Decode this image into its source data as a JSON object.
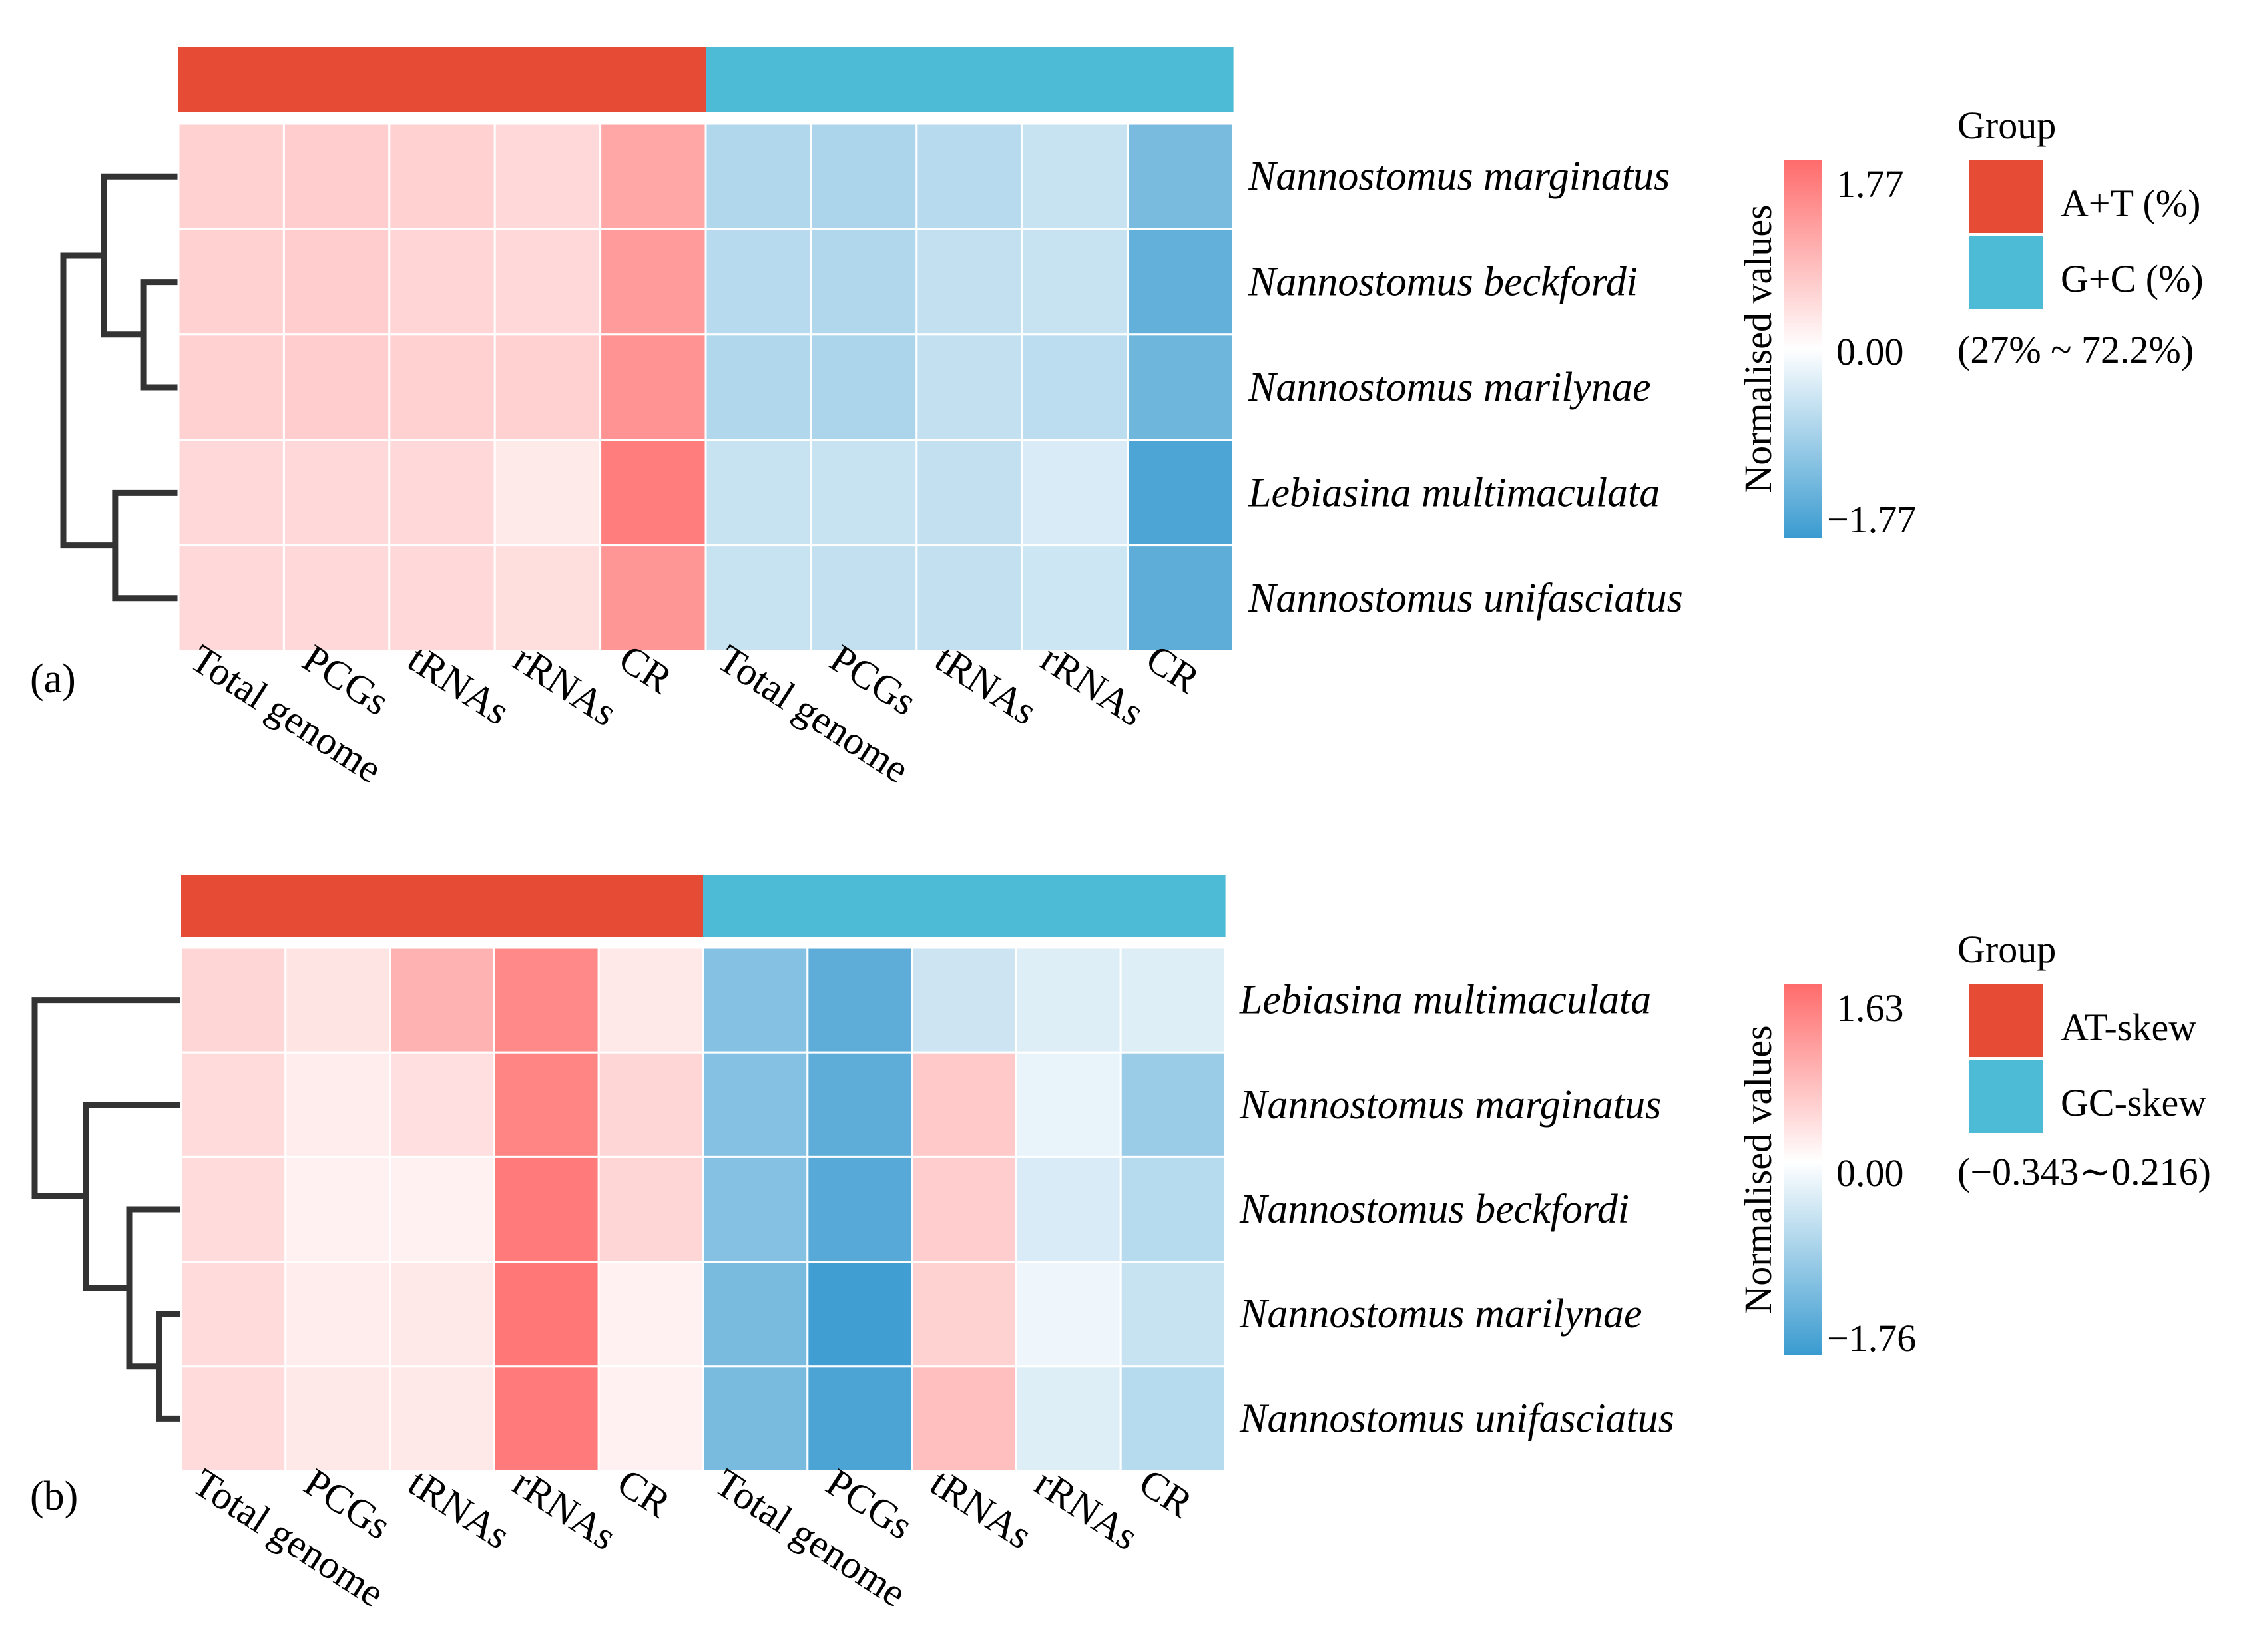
{
  "chart_data": [
    {
      "type": "heatmap",
      "panel_label": "(a)",
      "columns": [
        "Total genome",
        "PCGs",
        "tRNAs",
        "rRNAs",
        "CR",
        "Total genome",
        "PCGs",
        "tRNAs",
        "rRNAs",
        "CR"
      ],
      "column_groups": [
        "A+T (%)",
        "A+T (%)",
        "A+T (%)",
        "A+T (%)",
        "A+T (%)",
        "G+C (%)",
        "G+C (%)",
        "G+C (%)",
        "G+C (%)",
        "G+C (%)"
      ],
      "rows": [
        "Nannostomus marginatus",
        "Nannostomus beckfordi",
        "Nannostomus marilynae",
        "Lebiasina multimaculata",
        "Nannostomus unifasciatus"
      ],
      "values": [
        [
          0.55,
          0.6,
          0.55,
          0.45,
          1.05,
          -0.7,
          -0.75,
          -0.65,
          -0.5,
          -1.2
        ],
        [
          0.55,
          0.6,
          0.5,
          0.45,
          1.2,
          -0.65,
          -0.7,
          -0.55,
          -0.5,
          -1.4
        ],
        [
          0.55,
          0.6,
          0.55,
          0.55,
          1.3,
          -0.7,
          -0.75,
          -0.55,
          -0.6,
          -1.3
        ],
        [
          0.45,
          0.45,
          0.45,
          0.25,
          1.55,
          -0.5,
          -0.5,
          -0.55,
          -0.35,
          -1.6
        ],
        [
          0.45,
          0.45,
          0.45,
          0.4,
          1.25,
          -0.5,
          -0.55,
          -0.55,
          -0.45,
          -1.45
        ]
      ],
      "color_scale": {
        "title": "Normalised values",
        "min": -1.77,
        "max": 1.77,
        "ticks": [
          "1.77",
          "0.00",
          "−1.77"
        ],
        "low_color": "#3A9BD0",
        "mid_color": "#FFFFFF",
        "high_color": "#FF6B6B"
      },
      "legend": {
        "title": "Group",
        "entries": [
          {
            "label": "A+T (%)",
            "color": "#E64B35"
          },
          {
            "label": "G+C (%)",
            "color": "#4DBBD5"
          }
        ],
        "range_note": "(27% ~ 72.2%)"
      },
      "dendrogram": {
        "merges": [
          [
            1,
            2
          ],
          [
            3,
            4
          ],
          [
            0,
            -1
          ],
          [
            -3,
            -2
          ]
        ],
        "heights": [
          0.3,
          0.55,
          0.65,
          1.0
        ],
        "leaf_order": [
          0,
          1,
          2,
          3,
          4
        ]
      }
    },
    {
      "type": "heatmap",
      "panel_label": "(b)",
      "columns": [
        "Total genome",
        "PCGs",
        "tRNAs",
        "rRNAs",
        "CR",
        "Total genome",
        "PCGs",
        "tRNAs",
        "rRNAs",
        "CR"
      ],
      "column_groups": [
        "AT-skew",
        "AT-skew",
        "AT-skew",
        "AT-skew",
        "AT-skew",
        "GC-skew",
        "GC-skew",
        "GC-skew",
        "GC-skew",
        "GC-skew"
      ],
      "rows": [
        "Lebiasina multimaculata",
        "Nannostomus marginatus",
        "Nannostomus beckfordi",
        "Nannostomus marilynae",
        "Nannostomus unifasciatus"
      ],
      "values": [
        [
          0.45,
          0.3,
          0.85,
          1.3,
          0.25,
          -1.1,
          -1.45,
          -0.45,
          -0.3,
          -0.3
        ],
        [
          0.4,
          0.2,
          0.35,
          1.35,
          0.45,
          -1.1,
          -1.45,
          0.6,
          -0.2,
          -0.9
        ],
        [
          0.4,
          0.15,
          0.15,
          1.45,
          0.45,
          -1.1,
          -1.5,
          0.55,
          -0.35,
          -0.65
        ],
        [
          0.4,
          0.2,
          0.25,
          1.5,
          0.15,
          -1.2,
          -1.7,
          0.5,
          -0.15,
          -0.5
        ],
        [
          0.4,
          0.25,
          0.25,
          1.45,
          0.15,
          -1.2,
          -1.6,
          0.7,
          -0.3,
          -0.65
        ]
      ],
      "color_scale": {
        "title": "Normalised values",
        "min": -1.76,
        "max": 1.63,
        "ticks": [
          "1.63",
          "0.00",
          "−1.76"
        ],
        "low_color": "#3A9BD0",
        "mid_color": "#FFFFFF",
        "high_color": "#FF6B6B"
      },
      "legend": {
        "title": "Group",
        "entries": [
          {
            "label": "AT-skew",
            "color": "#E64B35"
          },
          {
            "label": "GC-skew",
            "color": "#4DBBD5"
          }
        ],
        "range_note": "(−0.343∼0.216)"
      },
      "dendrogram": {
        "merges": [
          [
            3,
            4
          ],
          [
            2,
            -1
          ],
          [
            1,
            -2
          ],
          [
            0,
            -3
          ]
        ],
        "heights": [
          0.15,
          0.35,
          0.65,
          1.0
        ],
        "leaf_order": [
          0,
          1,
          2,
          3,
          4
        ]
      }
    }
  ]
}
